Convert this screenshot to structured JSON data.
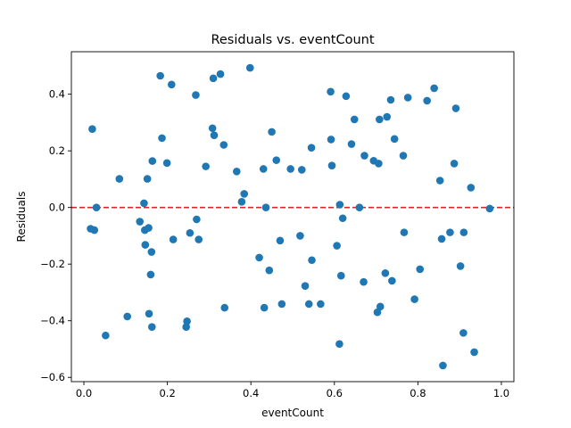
{
  "chart_data": {
    "type": "scatter",
    "title": "Residuals vs. eventCount",
    "xlabel": "eventCount",
    "ylabel": "Residuals",
    "xlim": [
      -0.03,
      1.03
    ],
    "ylim": [
      -0.615,
      0.55
    ],
    "xticks": [
      "0.0",
      "0.2",
      "0.4",
      "0.6",
      "0.8",
      "1.0"
    ],
    "yticks": [
      "−0.6",
      "−0.4",
      "−0.2",
      "0.0",
      "0.2",
      "0.4"
    ],
    "grid": false,
    "legend": "none",
    "marker_color": "#1f77b4",
    "reference_line": {
      "y": 0.0,
      "color": "#d62728",
      "style": "dashed"
    },
    "points": [
      {
        "x": 0.016,
        "y": -0.075
      },
      {
        "x": 0.02,
        "y": 0.277
      },
      {
        "x": 0.025,
        "y": -0.08
      },
      {
        "x": 0.03,
        "y": 0.0
      },
      {
        "x": 0.052,
        "y": -0.452
      },
      {
        "x": 0.085,
        "y": 0.101
      },
      {
        "x": 0.104,
        "y": -0.385
      },
      {
        "x": 0.134,
        "y": -0.05
      },
      {
        "x": 0.144,
        "y": 0.015
      },
      {
        "x": 0.146,
        "y": -0.08
      },
      {
        "x": 0.147,
        "y": -0.132
      },
      {
        "x": 0.152,
        "y": 0.101
      },
      {
        "x": 0.155,
        "y": -0.072
      },
      {
        "x": 0.156,
        "y": -0.375
      },
      {
        "x": 0.16,
        "y": -0.237
      },
      {
        "x": 0.162,
        "y": -0.157
      },
      {
        "x": 0.163,
        "y": -0.422
      },
      {
        "x": 0.164,
        "y": 0.164
      },
      {
        "x": 0.183,
        "y": 0.465
      },
      {
        "x": 0.187,
        "y": 0.245
      },
      {
        "x": 0.199,
        "y": 0.157
      },
      {
        "x": 0.21,
        "y": 0.434
      },
      {
        "x": 0.214,
        "y": -0.113
      },
      {
        "x": 0.245,
        "y": -0.422
      },
      {
        "x": 0.247,
        "y": -0.402
      },
      {
        "x": 0.254,
        "y": -0.09
      },
      {
        "x": 0.268,
        "y": 0.397
      },
      {
        "x": 0.27,
        "y": -0.042
      },
      {
        "x": 0.275,
        "y": -0.113
      },
      {
        "x": 0.292,
        "y": 0.145
      },
      {
        "x": 0.308,
        "y": 0.28
      },
      {
        "x": 0.31,
        "y": 0.456
      },
      {
        "x": 0.312,
        "y": 0.255
      },
      {
        "x": 0.327,
        "y": 0.471
      },
      {
        "x": 0.335,
        "y": 0.221
      },
      {
        "x": 0.337,
        "y": -0.354
      },
      {
        "x": 0.366,
        "y": 0.127
      },
      {
        "x": 0.378,
        "y": 0.02
      },
      {
        "x": 0.384,
        "y": 0.048
      },
      {
        "x": 0.398,
        "y": 0.493
      },
      {
        "x": 0.42,
        "y": -0.177
      },
      {
        "x": 0.43,
        "y": 0.136
      },
      {
        "x": 0.432,
        "y": -0.354
      },
      {
        "x": 0.436,
        "y": 0.0
      },
      {
        "x": 0.444,
        "y": -0.222
      },
      {
        "x": 0.45,
        "y": 0.267
      },
      {
        "x": 0.461,
        "y": 0.167
      },
      {
        "x": 0.47,
        "y": -0.117
      },
      {
        "x": 0.474,
        "y": -0.341
      },
      {
        "x": 0.495,
        "y": 0.136
      },
      {
        "x": 0.518,
        "y": -0.1
      },
      {
        "x": 0.522,
        "y": 0.133
      },
      {
        "x": 0.53,
        "y": -0.277
      },
      {
        "x": 0.539,
        "y": -0.341
      },
      {
        "x": 0.545,
        "y": 0.211
      },
      {
        "x": 0.546,
        "y": -0.186
      },
      {
        "x": 0.567,
        "y": -0.341
      },
      {
        "x": 0.591,
        "y": 0.409
      },
      {
        "x": 0.592,
        "y": 0.24
      },
      {
        "x": 0.594,
        "y": 0.148
      },
      {
        "x": 0.606,
        "y": -0.135
      },
      {
        "x": 0.612,
        "y": -0.482
      },
      {
        "x": 0.613,
        "y": 0.01
      },
      {
        "x": 0.616,
        "y": -0.241
      },
      {
        "x": 0.62,
        "y": -0.038
      },
      {
        "x": 0.628,
        "y": 0.393
      },
      {
        "x": 0.641,
        "y": 0.224
      },
      {
        "x": 0.648,
        "y": 0.311
      },
      {
        "x": 0.66,
        "y": 0.0
      },
      {
        "x": 0.67,
        "y": -0.263
      },
      {
        "x": 0.672,
        "y": 0.183
      },
      {
        "x": 0.694,
        "y": 0.165
      },
      {
        "x": 0.703,
        "y": -0.37
      },
      {
        "x": 0.706,
        "y": 0.155
      },
      {
        "x": 0.708,
        "y": 0.311
      },
      {
        "x": 0.71,
        "y": -0.35
      },
      {
        "x": 0.722,
        "y": -0.232
      },
      {
        "x": 0.726,
        "y": 0.32
      },
      {
        "x": 0.735,
        "y": 0.38
      },
      {
        "x": 0.738,
        "y": -0.259
      },
      {
        "x": 0.744,
        "y": 0.242
      },
      {
        "x": 0.765,
        "y": 0.183
      },
      {
        "x": 0.767,
        "y": -0.088
      },
      {
        "x": 0.776,
        "y": 0.388
      },
      {
        "x": 0.792,
        "y": -0.324
      },
      {
        "x": 0.805,
        "y": -0.218
      },
      {
        "x": 0.822,
        "y": 0.377
      },
      {
        "x": 0.839,
        "y": 0.421
      },
      {
        "x": 0.853,
        "y": 0.095
      },
      {
        "x": 0.857,
        "y": -0.111
      },
      {
        "x": 0.86,
        "y": -0.558
      },
      {
        "x": 0.877,
        "y": -0.088
      },
      {
        "x": 0.887,
        "y": 0.155
      },
      {
        "x": 0.891,
        "y": 0.35
      },
      {
        "x": 0.902,
        "y": -0.207
      },
      {
        "x": 0.909,
        "y": -0.443
      },
      {
        "x": 0.91,
        "y": -0.088
      },
      {
        "x": 0.927,
        "y": 0.07
      },
      {
        "x": 0.935,
        "y": -0.511
      },
      {
        "x": 0.972,
        "y": -0.004
      }
    ]
  }
}
